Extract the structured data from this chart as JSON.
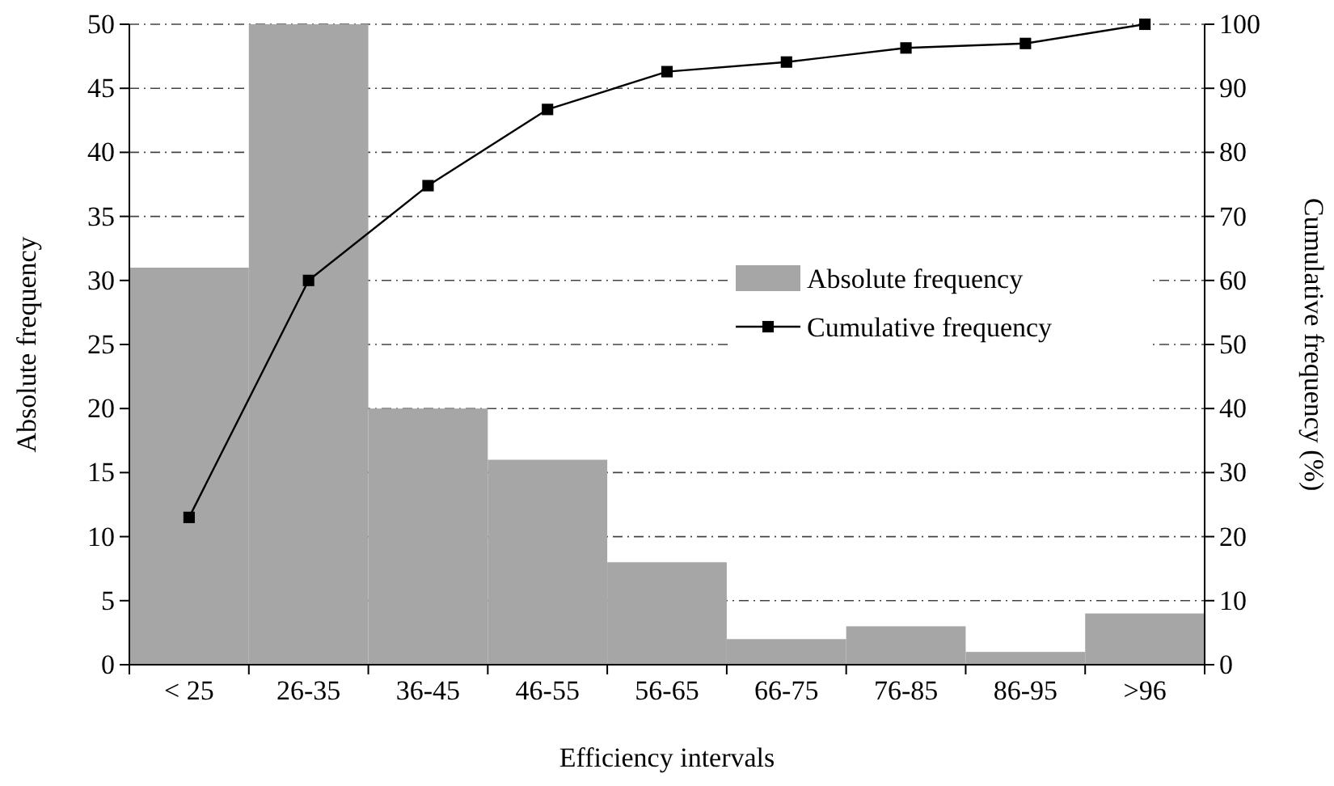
{
  "chart_data": {
    "type": "bar",
    "xlabel": "Efficiency intervals",
    "ylabel": "Absolute frequency",
    "y2label": "Cumulative frequency (%)",
    "categories": [
      "< 25",
      "26-35",
      "36-45",
      "46-55",
      "56-65",
      "66-75",
      "76-85",
      "86-95",
      ">96"
    ],
    "series": [
      {
        "name": "Absolute frequency",
        "color": "#a6a6a6",
        "values": [
          31,
          50,
          20,
          16,
          8,
          2,
          3,
          1,
          4
        ]
      },
      {
        "name": "Cumulative frequency",
        "type": "line",
        "axis": "y2",
        "color": "#000000",
        "marker": "square",
        "values": [
          23.0,
          60.0,
          74.8,
          86.7,
          92.6,
          94.1,
          96.3,
          97.0,
          100
        ]
      }
    ],
    "ylim": [
      0,
      50
    ],
    "yticks": [
      0,
      5,
      10,
      15,
      20,
      25,
      30,
      35,
      40,
      45,
      50
    ],
    "y2lim": [
      0,
      100
    ],
    "y2ticks": [
      0,
      10,
      20,
      30,
      40,
      50,
      60,
      70,
      80,
      90,
      100
    ],
    "grid": "y",
    "legend": "right",
    "line_style": "solid"
  }
}
